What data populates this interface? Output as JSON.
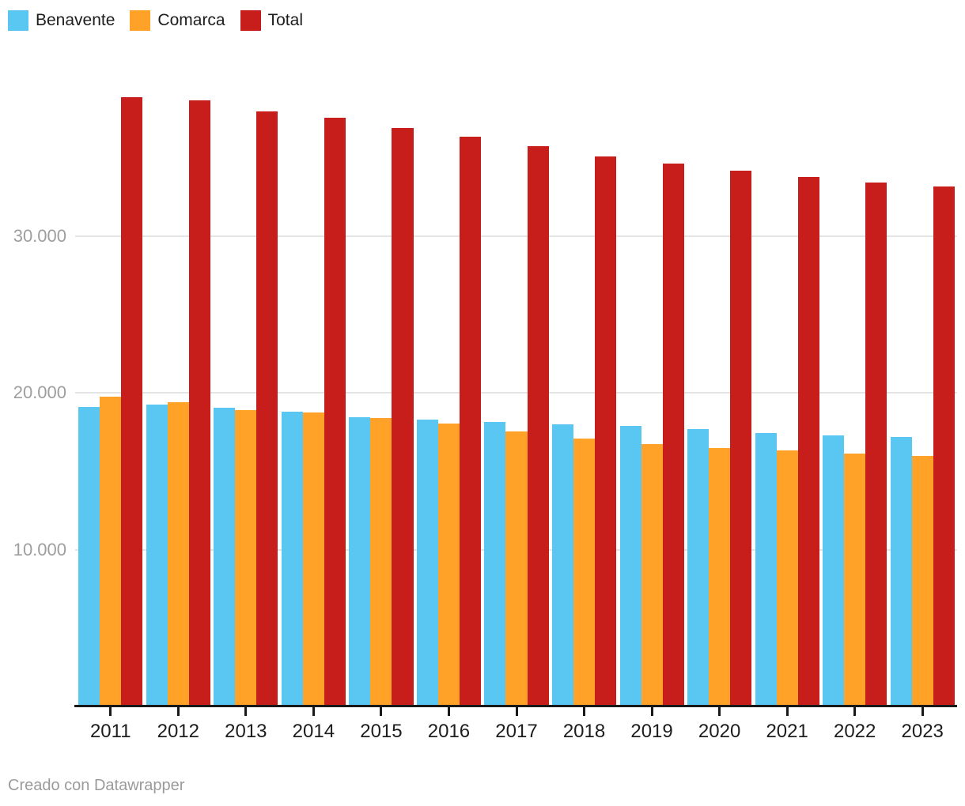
{
  "legend": {
    "items": [
      {
        "label": "Benavente",
        "color": "#59c7f2"
      },
      {
        "label": "Comarca",
        "color": "#ffa227"
      },
      {
        "label": "Total",
        "color": "#c71e1c"
      }
    ]
  },
  "footer": {
    "text": "Creado con Datawrapper"
  },
  "chart_data": {
    "type": "bar",
    "categories": [
      "2011",
      "2012",
      "2013",
      "2014",
      "2015",
      "2016",
      "2017",
      "2018",
      "2019",
      "2020",
      "2021",
      "2022",
      "2023"
    ],
    "series": [
      {
        "name": "Benavente",
        "color": "#59c7f2",
        "values": [
          19110,
          19250,
          19050,
          18810,
          18440,
          18300,
          18160,
          18000,
          17890,
          17700,
          17430,
          17300,
          17200
        ]
      },
      {
        "name": "Comarca",
        "color": "#ffa227",
        "values": [
          19750,
          19410,
          18900,
          18760,
          18420,
          18060,
          17570,
          17100,
          16750,
          16480,
          16340,
          16120,
          15970
        ]
      },
      {
        "name": "Total",
        "color": "#c71e1c",
        "values": [
          38860,
          38660,
          37950,
          37570,
          36900,
          36360,
          35730,
          35100,
          34640,
          34180,
          33770,
          33420,
          33170
        ]
      }
    ],
    "title": "",
    "xlabel": "",
    "ylabel": "",
    "ylim": [
      0,
      40000
    ],
    "yticks": [
      {
        "value": 10000,
        "label": "10.000"
      },
      {
        "value": 20000,
        "label": "20.000"
      },
      {
        "value": 30000,
        "label": "30.000"
      }
    ],
    "grid": true,
    "legend_position": "top-left"
  }
}
